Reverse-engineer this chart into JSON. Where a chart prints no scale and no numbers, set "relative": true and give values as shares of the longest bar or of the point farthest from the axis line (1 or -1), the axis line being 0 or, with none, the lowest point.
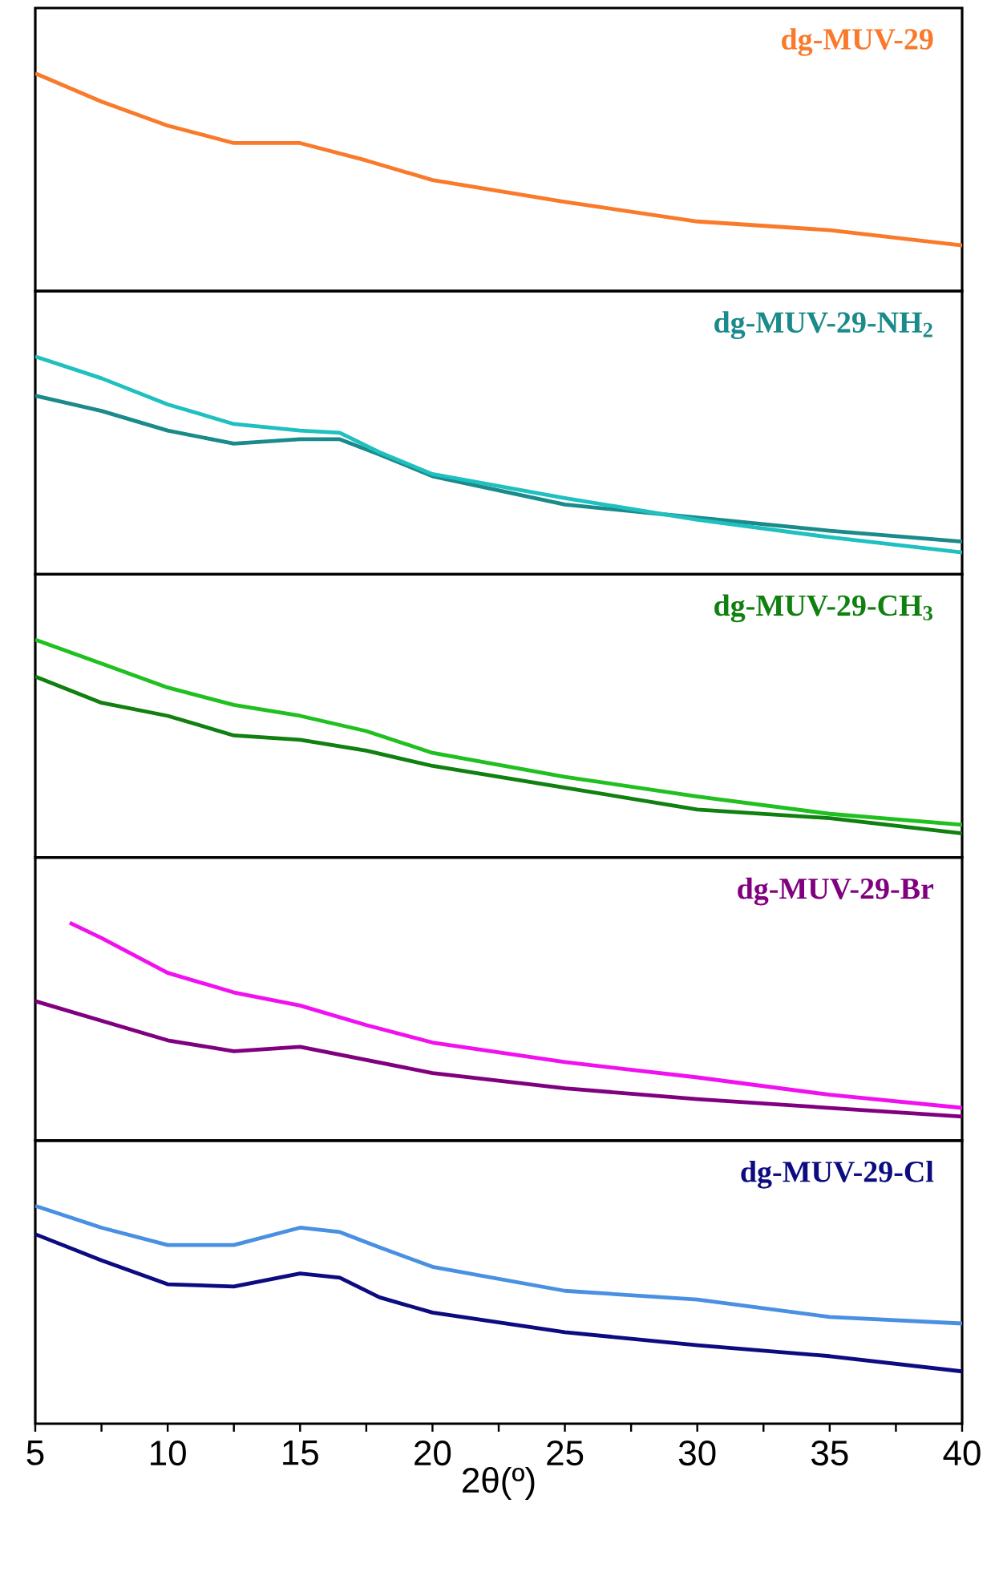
{
  "chart_data": [
    {
      "type": "line",
      "relative": true,
      "xlim": [
        5,
        40
      ],
      "tick_labels": false,
      "series": [
        {
          "name": "dg-MUV-29",
          "color": "#f97a2b",
          "x": [
            5,
            7.5,
            10,
            12.5,
            15,
            17.5,
            20,
            25,
            30,
            35,
            40
          ],
          "values": [
            1,
            0.87,
            0.76,
            0.68,
            0.68,
            0.6,
            0.51,
            0.41,
            0.32,
            0.28,
            0.21
          ]
        }
      ]
    },
    {
      "type": "line",
      "relative": true,
      "xlim": [
        5,
        40
      ],
      "tick_labels": false,
      "series": [
        {
          "name": "dg-MUV-29-NH$_{2}$",
          "color": "#1a8a8a",
          "x": [
            5,
            7.5,
            10,
            12.5,
            15,
            16.5,
            18,
            20,
            25,
            30,
            35,
            40
          ],
          "values": [
            0.82,
            0.75,
            0.66,
            0.6,
            0.62,
            0.62,
            0.55,
            0.45,
            0.32,
            0.26,
            0.2,
            0.15
          ]
        },
        {
          "color": "#20c0c0",
          "x": [
            5,
            7.5,
            10,
            12.5,
            15,
            16.5,
            18,
            20,
            25,
            30,
            35,
            40
          ],
          "values": [
            1,
            0.9,
            0.78,
            0.69,
            0.66,
            0.65,
            0.56,
            0.46,
            0.35,
            0.25,
            0.17,
            0.1
          ]
        }
      ]
    },
    {
      "type": "line",
      "relative": true,
      "xlim": [
        5,
        40
      ],
      "tick_labels": false,
      "series": [
        {
          "name": "dg-MUV-29-CH$_{3}$",
          "color": "#108010",
          "x": [
            5,
            7.5,
            10,
            12.5,
            15,
            17.5,
            20,
            25,
            30,
            35,
            40
          ],
          "values": [
            0.83,
            0.71,
            0.65,
            0.56,
            0.54,
            0.49,
            0.42,
            0.32,
            0.22,
            0.18,
            0.11
          ]
        },
        {
          "color": "#20c020",
          "x": [
            5,
            7.5,
            10,
            12.5,
            15,
            17.5,
            20,
            25,
            30,
            35,
            40
          ],
          "values": [
            1,
            0.89,
            0.78,
            0.7,
            0.65,
            0.58,
            0.48,
            0.37,
            0.28,
            0.2,
            0.15
          ]
        }
      ]
    },
    {
      "type": "line",
      "relative": true,
      "xlim": [
        5,
        40
      ],
      "tick_labels": false,
      "series": [
        {
          "name": "dg-MUV-29-Br",
          "color": "#800080",
          "x": [
            5,
            7.5,
            10,
            12.5,
            15,
            17.5,
            20,
            25,
            30,
            35,
            40
          ],
          "values": [
            0.64,
            0.55,
            0.46,
            0.41,
            0.43,
            0.37,
            0.31,
            0.24,
            0.19,
            0.15,
            0.11
          ]
        },
        {
          "color": "#f010f0",
          "x": [
            6.3,
            7.5,
            10,
            12.5,
            15,
            17.5,
            20,
            25,
            30,
            35,
            40
          ],
          "values": [
            1,
            0.93,
            0.77,
            0.68,
            0.62,
            0.53,
            0.45,
            0.36,
            0.29,
            0.21,
            0.15
          ]
        }
      ]
    },
    {
      "type": "line",
      "relative": true,
      "xlim": [
        5,
        40
      ],
      "tick_labels": "x",
      "xlabel": "2θ(º)",
      "xticks": [
        5,
        {
          "value": 7.5,
          "label": null
        },
        10,
        {
          "value": 12.5,
          "label": null
        },
        15,
        {
          "value": 17.5,
          "label": null
        },
        20,
        {
          "value": 22.5,
          "label": null
        },
        25,
        {
          "value": 27.5,
          "label": null
        },
        30,
        {
          "value": 32.5,
          "label": null
        },
        35,
        {
          "value": 37.5,
          "label": null
        },
        40
      ],
      "series": [
        {
          "name": "dg-MUV-29-Cl",
          "color": "#0c0c80",
          "x": [
            5,
            7.5,
            10,
            12.5,
            15,
            16.5,
            18,
            20,
            25,
            30,
            35,
            40
          ],
          "values": [
            0.87,
            0.75,
            0.64,
            0.63,
            0.69,
            0.67,
            0.58,
            0.51,
            0.42,
            0.36,
            0.31,
            0.24
          ]
        },
        {
          "color": "#4a90e2",
          "x": [
            5,
            7.5,
            10,
            12.5,
            15,
            16.5,
            18,
            20,
            25,
            30,
            35,
            40
          ],
          "values": [
            1,
            0.9,
            0.82,
            0.82,
            0.9,
            0.88,
            0.81,
            0.72,
            0.61,
            0.57,
            0.49,
            0.46
          ]
        }
      ]
    }
  ]
}
